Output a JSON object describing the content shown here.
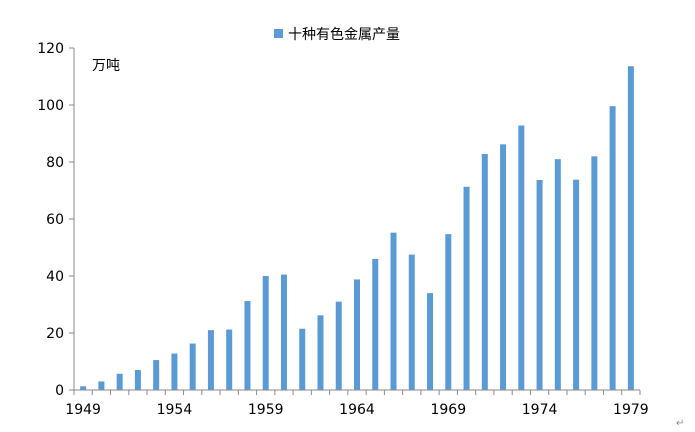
{
  "chart_data": {
    "type": "bar",
    "legend_entry": "十种有色金属产量",
    "legend_position": "top-center",
    "unit_label": "万吨",
    "color": "#5B9BD5",
    "grid": false,
    "x": [
      1949,
      1950,
      1951,
      1952,
      1953,
      1954,
      1955,
      1956,
      1957,
      1958,
      1959,
      1960,
      1961,
      1962,
      1963,
      1964,
      1965,
      1966,
      1967,
      1968,
      1969,
      1970,
      1971,
      1972,
      1973,
      1974,
      1975,
      1976,
      1977,
      1978,
      1979
    ],
    "values": [
      1.3,
      3.0,
      5.7,
      7.0,
      10.5,
      12.8,
      16.3,
      21.0,
      21.2,
      31.2,
      40.0,
      40.5,
      21.5,
      26.2,
      31.0,
      38.8,
      46.0,
      55.2,
      47.5,
      34.0,
      54.7,
      71.3,
      82.8,
      86.2,
      92.8,
      73.7,
      81.0,
      73.8,
      82.0,
      99.6,
      113.6
    ],
    "xticks": [
      "1949",
      "1954",
      "1959",
      "1964",
      "1969",
      "1974",
      "1979"
    ],
    "yticks": [
      "0",
      "20",
      "40",
      "60",
      "80",
      "100",
      "120"
    ],
    "ylim": [
      0,
      120
    ]
  },
  "corner_mark": "↵"
}
